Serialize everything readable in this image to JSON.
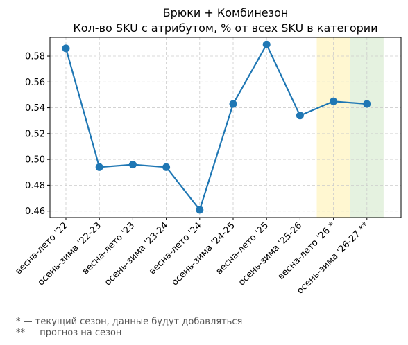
{
  "chart_data": {
    "type": "line",
    "title": "Брюки + Комбинезон",
    "subtitle": "Кол-во SKU с атрибутом, % от всех SKU в категории",
    "xlabel": "",
    "ylabel": "",
    "categories": [
      "весна-лето '22",
      "осень-зима '22-23",
      "весна-лето '23",
      "осень-зима '23-24",
      "весна-лето '24",
      "осень-зима '24-25",
      "весна-лето '25",
      "осень-зима '25-26",
      "весна-лето '26 *",
      "осень-зима '26-27 **"
    ],
    "series": [
      {
        "values": [
          0.586,
          0.494,
          0.496,
          0.494,
          0.461,
          0.543,
          0.589,
          0.534,
          0.545,
          0.543
        ]
      }
    ],
    "ylim": [
      0.455,
      0.5945
    ],
    "yticks": [
      0.46,
      0.48,
      0.5,
      0.52,
      0.54,
      0.56,
      0.58
    ],
    "grid": true,
    "line_color": "#1f77b4",
    "highlights": [
      {
        "category": "весна-лето '26 *",
        "color": "#fff7d1"
      },
      {
        "category": "осень-зима '26-27 **",
        "color": "#e5f2e0"
      }
    ]
  },
  "footnotes": {
    "current": "* — текущий сезон, данные будут добавляться",
    "forecast": "** — прогноз на сезон"
  }
}
